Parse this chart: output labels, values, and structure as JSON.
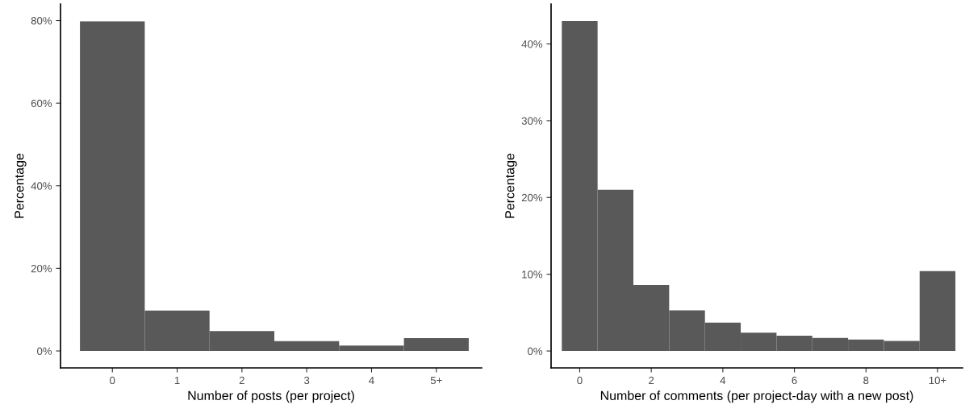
{
  "chart_data": [
    {
      "type": "bar",
      "xlabel": "Number of posts (per project)",
      "ylabel": "Percentage",
      "categories": [
        "0",
        "1",
        "2",
        "3",
        "4",
        "5+"
      ],
      "values": [
        79.8,
        9.8,
        4.8,
        2.4,
        1.3,
        3.1
      ],
      "color": "#595959",
      "ylim": [
        -4.1,
        84
      ],
      "yticks": [
        {
          "value": 0,
          "label": "0%"
        },
        {
          "value": 20,
          "label": "20%"
        },
        {
          "value": 40,
          "label": "40%"
        },
        {
          "value": 60,
          "label": "60%"
        },
        {
          "value": 80,
          "label": "80%"
        }
      ],
      "grid": false
    },
    {
      "type": "bar",
      "xlabel": "Number of comments (per project-day with a new post)",
      "ylabel": "Percentage",
      "categories": [
        "0",
        null,
        "2",
        null,
        "4",
        null,
        "6",
        null,
        "8",
        null,
        "10+"
      ],
      "values": [
        43.0,
        21.0,
        8.6,
        5.3,
        3.7,
        2.4,
        2.0,
        1.7,
        1.5,
        1.3,
        10.4
      ],
      "color": "#595959",
      "ylim": [
        -2.2,
        45.2
      ],
      "yticks": [
        {
          "value": 0,
          "label": "0%"
        },
        {
          "value": 10,
          "label": "10%"
        },
        {
          "value": 20,
          "label": "20%"
        },
        {
          "value": 30,
          "label": "30%"
        },
        {
          "value": 40,
          "label": "40%"
        }
      ],
      "grid": false
    }
  ]
}
